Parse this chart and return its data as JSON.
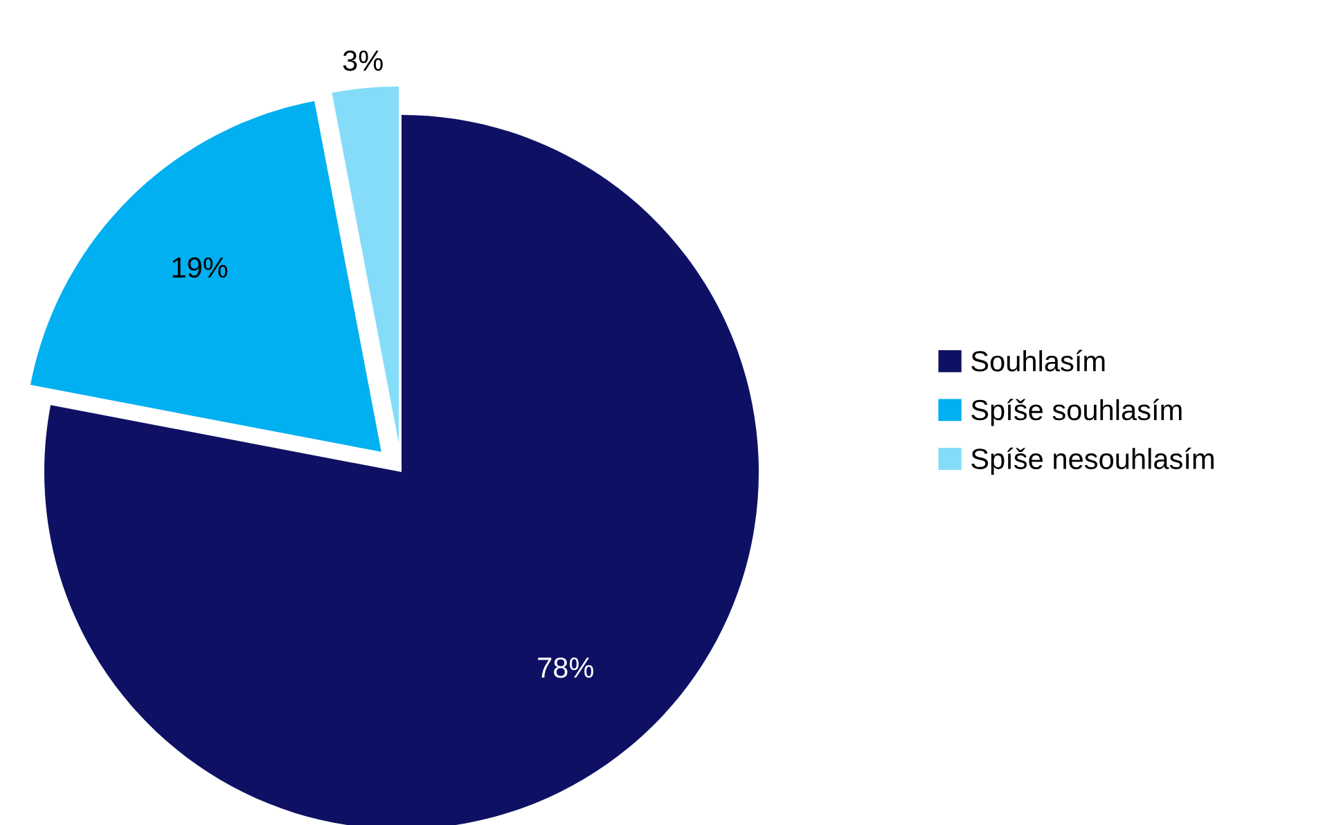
{
  "chart_data": {
    "type": "pie",
    "categories": [
      "Souhlasím",
      "Spíše souhlasím",
      "Spíše nesouhlasím"
    ],
    "values": [
      78,
      19,
      3
    ],
    "colors": [
      "#0e1163",
      "#00b0f0",
      "#85dcf8"
    ],
    "value_labels": [
      "78%",
      "19%",
      "3%"
    ],
    "legend": "right"
  }
}
